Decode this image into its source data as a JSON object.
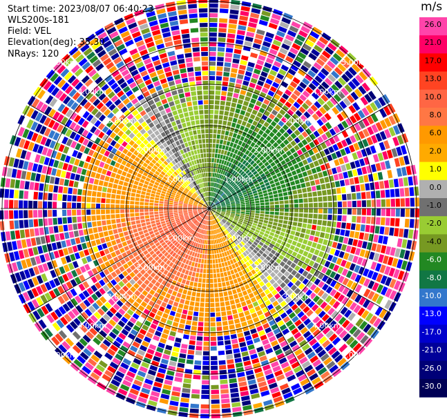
{
  "header": {
    "start_time": "Start time: 2023/08/07 06:40:23",
    "instrument": "WLS200s-181",
    "field": "Field: VEL",
    "elevation": "Elevation(deg): 35.30",
    "nrays": "NRays: 120"
  },
  "colorbar": {
    "unit": "m/s",
    "ticks": [
      "26.0",
      "21.0",
      "17.0",
      "13.0",
      "10.0",
      "8.0",
      "6.0",
      "2.0",
      "1.0",
      "0.0",
      "-1.0",
      "-2.0",
      "-4.0",
      "-6.0",
      "-8.0",
      "-10.0",
      "-13.0",
      "-17.0",
      "-21.0",
      "-26.0",
      "-30.0"
    ],
    "colors": [
      "#ff44aa",
      "#ff0066",
      "#ff0000",
      "#ff4422",
      "#ff6644",
      "#ff7744",
      "#ff9900",
      "#ffaa00",
      "#ffff00",
      "#b0b0b0",
      "#707070",
      "#99cc33",
      "#779922",
      "#228822",
      "#117744",
      "#3377cc",
      "#0000ff",
      "#0000cc",
      "#000099",
      "#000077",
      "#000055"
    ]
  },
  "chart_data": {
    "type": "ppi",
    "field": "VEL",
    "units": "m/s",
    "range_rings_km": [
      1,
      2,
      3,
      4,
      5
    ],
    "range_ring_labels": [
      "1.00km",
      "2.00km",
      "3.00km",
      "4.00km",
      "5.00km"
    ],
    "nrays": 120,
    "elevation_deg": 35.3,
    "radial_lines_deg": [
      0,
      30,
      60,
      90,
      120,
      150,
      180,
      210,
      240,
      270,
      300,
      330
    ],
    "velocity_pattern": {
      "inner_radius_km": 3.1,
      "max_amplitude_ms": 10.0,
      "northeast_sector": "negative velocities (green), -6 to -10 m/s near center",
      "southwest_sector": "positive velocities (yellow/orange), 2 to 8 m/s",
      "outer_region": "noisy, random colors"
    }
  }
}
